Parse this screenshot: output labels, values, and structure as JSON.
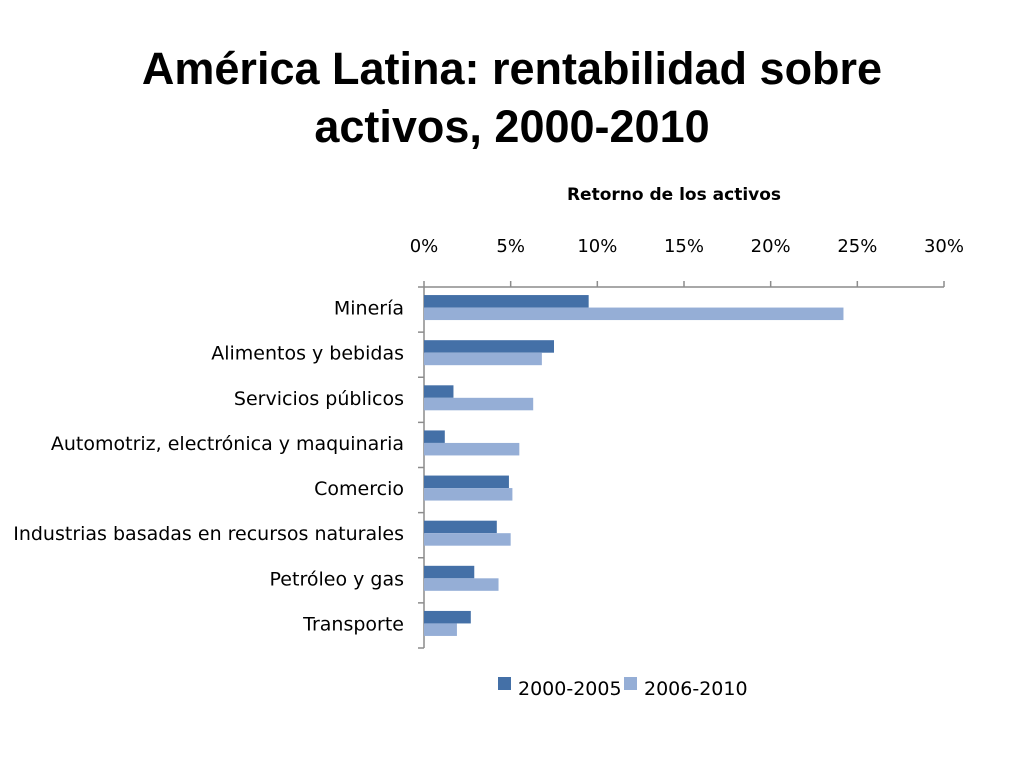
{
  "slide": {
    "title_line1": "América Latina: rentabilidad sobre",
    "title_line2": "activos, 2000-2010"
  },
  "chart_data": {
    "type": "bar",
    "orientation": "horizontal",
    "title": "Retorno de los activos",
    "x_axis_position": "top",
    "xlim": [
      0,
      30
    ],
    "x_ticks": [
      0,
      5,
      10,
      15,
      20,
      25,
      30
    ],
    "x_tick_labels": [
      "0%",
      "5%",
      "10%",
      "15%",
      "20%",
      "25%",
      "30%"
    ],
    "grid": false,
    "legend_position": "bottom",
    "categories": [
      "Minería",
      "Alimentos y bebidas",
      "Servicios públicos",
      "Automotriz, electrónica y maquinaria",
      "Comercio",
      "Industrias basadas en recursos naturales",
      "Petróleo y gas",
      "Transporte"
    ],
    "series": [
      {
        "name": "2000-2005",
        "color": "#4470A7",
        "values": [
          9.5,
          7.5,
          1.7,
          1.2,
          4.9,
          4.2,
          2.9,
          2.7
        ]
      },
      {
        "name": "2006-2010",
        "color": "#95AED6",
        "values": [
          24.2,
          6.8,
          6.3,
          5.5,
          5.1,
          5.0,
          4.3,
          1.9
        ]
      }
    ]
  }
}
